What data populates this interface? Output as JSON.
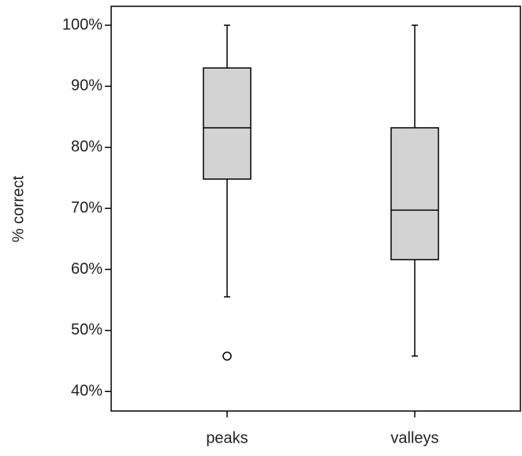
{
  "chart_data": {
    "type": "box",
    "y_label": "% correct",
    "categories": [
      "peaks",
      "valleys"
    ],
    "boxes": [
      {
        "whisker_low": 55.5,
        "q1": 74.8,
        "median": 83.2,
        "q3": 93.0,
        "whisker_high": 100,
        "outliers": [
          45.8
        ]
      },
      {
        "whisker_low": 45.8,
        "q1": 61.6,
        "median": 69.7,
        "q3": 83.2,
        "whisker_high": 100,
        "outliers": []
      }
    ],
    "color": "#d3d3d3",
    "ylim": [
      36.8,
      103.1
    ],
    "yticks": [
      {
        "value": 40,
        "label": "40%"
      },
      {
        "value": 50,
        "label": "50%"
      },
      {
        "value": 60,
        "label": "60%"
      },
      {
        "value": 70,
        "label": "70%"
      },
      {
        "value": 80,
        "label": "80%"
      },
      {
        "value": 90,
        "label": "90%"
      },
      {
        "value": 100,
        "label": "100%"
      }
    ]
  }
}
